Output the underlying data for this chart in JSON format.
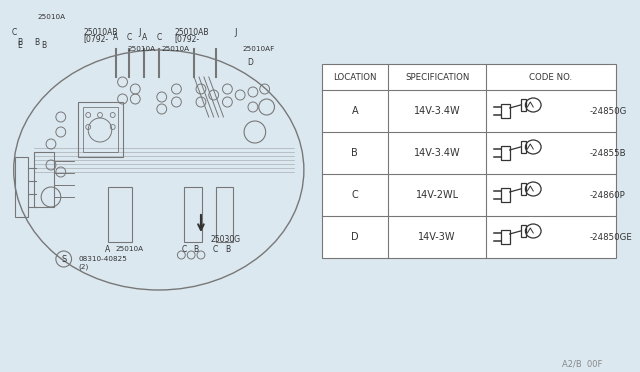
{
  "bg_color": "#dce8f0",
  "line_color": "#777777",
  "text_color": "#444444",
  "dark_color": "#333333",
  "table_bg": "#dce8f0",
  "headers": [
    "LOCATION",
    "SPECIFICATION",
    "CODE NO."
  ],
  "rows": [
    {
      "loc": "A",
      "spec": "14V-3.4W",
      "code": "24850G"
    },
    {
      "loc": "B",
      "spec": "14V-3.4W",
      "code": "24855B"
    },
    {
      "loc": "C",
      "spec": "14V-2WL",
      "code": "24860P"
    },
    {
      "loc": "D",
      "spec": "14V-3W",
      "code": "24850GE"
    }
  ],
  "footer_text": "A2/B  00F"
}
